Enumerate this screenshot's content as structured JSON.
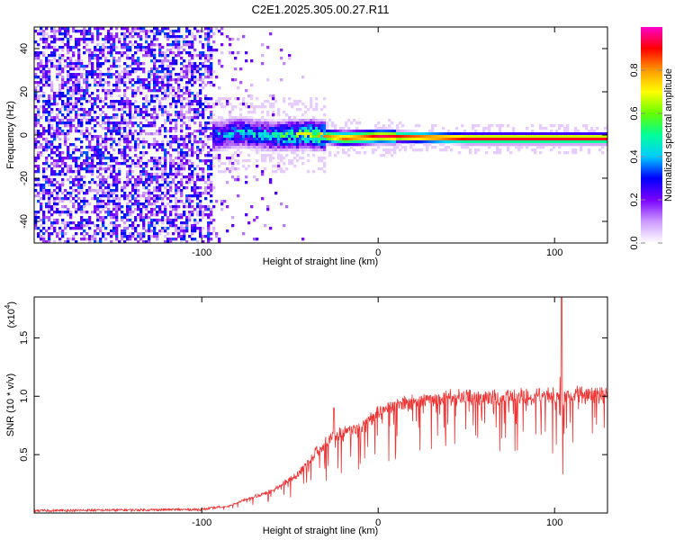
{
  "title": "C2E1.2025.305.00.27.R11",
  "chart_data": [
    {
      "type": "heatmap",
      "xlabel": "Height of straight line (km)",
      "ylabel": "Frequency (Hz)",
      "xlim": [
        -195,
        130
      ],
      "ylim": [
        -50,
        50
      ],
      "xticks": [
        -100,
        0,
        100
      ],
      "yticks": [
        -40,
        -20,
        0,
        20,
        40
      ],
      "colorbar": {
        "label": "Normalized spectral amplitude",
        "range": [
          0,
          1
        ],
        "ticks": [
          0.0,
          0.2,
          0.4,
          0.6,
          0.8
        ],
        "tick_labels": [
          "0.0",
          "0.2",
          "0.4",
          "0.6",
          "0.8"
        ],
        "colormap": [
          "#ffffff",
          "#cc99ff",
          "#7a00ff",
          "#0000ff",
          "#00ccff",
          "#00ff99",
          "#66ff00",
          "#ffff00",
          "#ff9900",
          "#ff0000",
          "#ff00cc"
        ]
      },
      "ridge": [
        {
          "x": -95,
          "y": 0,
          "amp": 0.45
        },
        {
          "x": -80,
          "y": 2,
          "amp": 0.5
        },
        {
          "x": -60,
          "y": 0,
          "amp": 0.55
        },
        {
          "x": -40,
          "y": 1,
          "amp": 0.75
        },
        {
          "x": -20,
          "y": -1,
          "amp": 0.9
        },
        {
          "x": 0,
          "y": 0,
          "amp": 0.95
        },
        {
          "x": 50,
          "y": -1,
          "amp": 1.0
        },
        {
          "x": 100,
          "y": -1,
          "amp": 1.0
        },
        {
          "x": 130,
          "y": -1,
          "amp": 1.0
        }
      ],
      "noise_region": {
        "x_start": -195,
        "x_end": -95,
        "amp": 0.3
      }
    },
    {
      "type": "line",
      "xlabel": "Height of straight line (km)",
      "ylabel": "SNR (10 * v/v)",
      "y_multiplier": "(x10",
      "y_multiplier_exp": "4",
      "xlim": [
        -195,
        130
      ],
      "ylim": [
        0,
        1.85
      ],
      "xticks": [
        -100,
        0,
        100
      ],
      "yticks": [
        0.5,
        1.0,
        1.5
      ],
      "ytick_labels": [
        "0.5",
        "1.0",
        "1.5"
      ],
      "color": "#ee3333",
      "envelope": [
        {
          "x": -195,
          "y": 0.02
        },
        {
          "x": -100,
          "y": 0.03
        },
        {
          "x": -85,
          "y": 0.06
        },
        {
          "x": -75,
          "y": 0.12
        },
        {
          "x": -60,
          "y": 0.2
        },
        {
          "x": -45,
          "y": 0.35
        },
        {
          "x": -35,
          "y": 0.55
        },
        {
          "x": -25,
          "y": 0.7
        },
        {
          "x": -10,
          "y": 0.75
        },
        {
          "x": 0,
          "y": 0.9
        },
        {
          "x": 10,
          "y": 0.97
        },
        {
          "x": 25,
          "y": 1.02
        },
        {
          "x": 50,
          "y": 1.04
        },
        {
          "x": 100,
          "y": 1.06
        },
        {
          "x": 130,
          "y": 1.07
        }
      ],
      "spikes": [
        {
          "x": -40,
          "y": 0.45
        },
        {
          "x": -25,
          "y": 0.9
        },
        {
          "x": -12,
          "y": 0.75
        },
        {
          "x": 104,
          "y": 1.85
        }
      ]
    }
  ]
}
